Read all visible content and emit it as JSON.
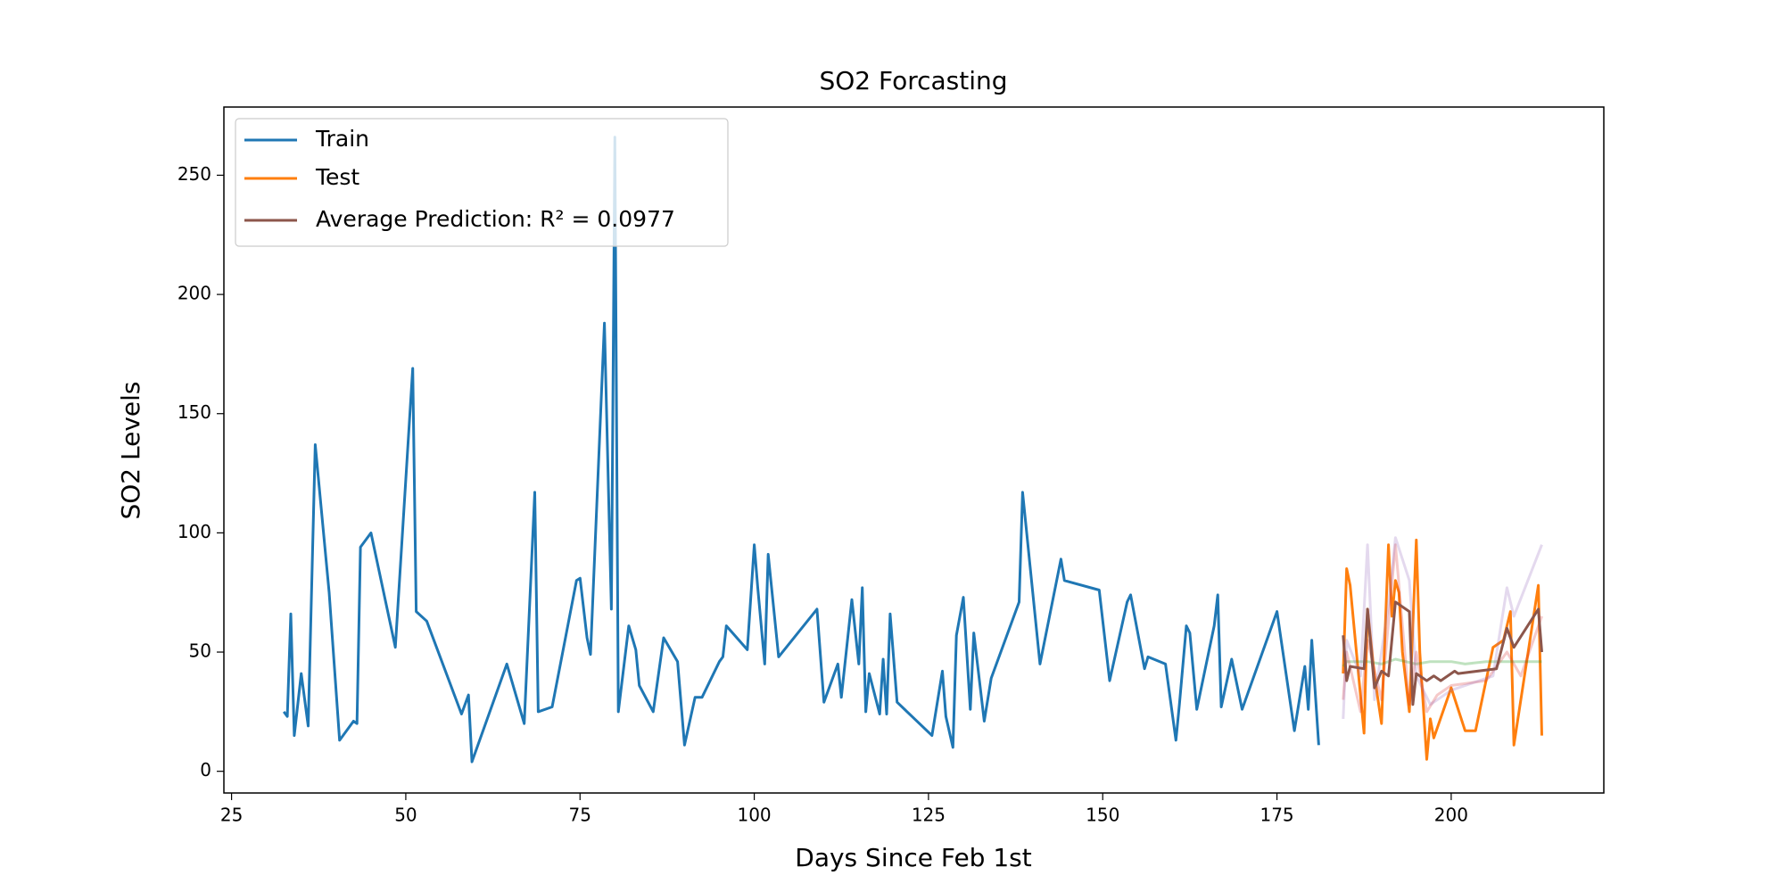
{
  "chart_data": {
    "type": "line",
    "title": "SO2 Forcasting",
    "x_label": "Days Since Feb 1st",
    "y_label": "SO2 Levels",
    "xlim": [
      23.9,
      221.9
    ],
    "ylim": [
      -9.1,
      278.6
    ],
    "xticks": [
      25,
      50,
      75,
      100,
      125,
      150,
      175,
      200
    ],
    "yticks": [
      0,
      50,
      100,
      150,
      200,
      250
    ],
    "grid": false,
    "legend_position": "upper-left",
    "series": [
      {
        "name": "Train",
        "color": "#1f77b4",
        "x": [
          32.5,
          33,
          33.5,
          34,
          35,
          36,
          37,
          39,
          40.5,
          42.5,
          43,
          43.5,
          45,
          48.5,
          51,
          51.5,
          53,
          58,
          59,
          59.5,
          64.5,
          67,
          68.5,
          69,
          71,
          74.5,
          75,
          76,
          76.5,
          78.5,
          79.5,
          80,
          80.5,
          82,
          83,
          83.5,
          85.5,
          87,
          89,
          90,
          91.5,
          92.5,
          95,
          95.5,
          96,
          99,
          100,
          100.5,
          101.5,
          102,
          103.5,
          109,
          110,
          112,
          112.5,
          114,
          115,
          115.5,
          116,
          116.5,
          118,
          118.5,
          119,
          119.5,
          120.5,
          125.5,
          127,
          127.5,
          128.5,
          129,
          130,
          131,
          131.5,
          133,
          134,
          138,
          138.5,
          141,
          144,
          144.5,
          149.5,
          151,
          153.5,
          154,
          156,
          156.5,
          159,
          160.5,
          161,
          162,
          162.5,
          163.5,
          166,
          166.5,
          167,
          168.5,
          170,
          175,
          177.5,
          179,
          179.5,
          180,
          181
        ],
        "values": [
          25,
          23,
          66,
          15,
          41,
          19,
          137,
          75,
          13,
          21,
          20,
          94,
          100,
          52,
          169,
          67,
          63,
          24,
          32,
          4,
          45,
          20,
          117,
          25,
          27,
          80,
          81,
          56,
          49,
          188,
          68,
          266,
          25,
          61,
          51,
          36,
          25,
          56,
          46,
          11,
          31,
          31,
          46,
          48,
          61,
          51,
          95,
          77,
          45,
          91,
          48,
          68,
          29,
          45,
          31,
          72,
          45,
          77,
          25,
          41,
          24,
          47,
          24,
          66,
          29,
          15,
          42,
          23,
          10,
          57,
          73,
          26,
          58,
          21,
          39,
          71,
          117,
          45,
          89,
          80,
          76,
          38,
          71,
          74,
          43,
          48,
          45,
          13,
          28,
          61,
          58,
          26,
          61,
          74,
          27,
          47,
          26,
          67,
          17,
          44,
          26,
          55,
          11
        ]
      },
      {
        "name": "Test",
        "color": "#ff7f0e",
        "x": [
          184.5,
          185,
          185.5,
          187.5,
          188,
          189,
          190,
          191,
          191.5,
          192,
          192.5,
          193,
          194,
          195,
          195.5,
          196.5,
          197,
          197.5,
          200,
          202,
          203.5,
          206,
          207.5,
          208.5,
          209,
          212.5,
          213
        ],
        "values": [
          41,
          85,
          78,
          16,
          68,
          40,
          20,
          95,
          65,
          80,
          75,
          50,
          25,
          97,
          50,
          5,
          22,
          14,
          35,
          17,
          17,
          52,
          55,
          67,
          11,
          78,
          15
        ]
      },
      {
        "color": "#2ca02c",
        "opacity": 0.3,
        "x": [
          184.5,
          185,
          188,
          190,
          192,
          195,
          197,
          200,
          202,
          205,
          208,
          210,
          213
        ],
        "values": [
          44,
          46,
          46,
          45,
          47,
          45,
          46,
          46,
          45,
          46,
          46,
          46,
          46
        ]
      },
      {
        "color": "#d62728",
        "opacity": 0.25,
        "x": [
          184.5,
          185,
          187,
          188,
          190,
          192,
          194,
          195,
          196.5,
          198,
          200,
          205,
          208,
          210,
          213
        ],
        "values": [
          30,
          50,
          25,
          55,
          30,
          95,
          28,
          50,
          25,
          32,
          36,
          38,
          50,
          40,
          65
        ]
      },
      {
        "color": "#9467bd",
        "opacity": 0.25,
        "x": [
          184.5,
          185,
          187,
          188,
          189,
          191,
          192,
          194,
          195,
          197,
          198,
          200,
          206,
          208,
          209,
          213
        ],
        "values": [
          22,
          55,
          40,
          95,
          30,
          70,
          98,
          80,
          40,
          28,
          30,
          34,
          40,
          77,
          65,
          95
        ]
      },
      {
        "name": "Average Prediction: R² = 0.0977",
        "color": "#8c564b",
        "x": [
          184.5,
          185,
          185.5,
          187.5,
          188,
          189,
          190,
          191,
          192,
          193,
          194,
          194.5,
          195,
          196.5,
          197.5,
          198.5,
          200.5,
          201,
          206.5,
          208,
          209,
          212.5,
          213
        ],
        "values": [
          57,
          38,
          44,
          43,
          68,
          35,
          42,
          40,
          71,
          69,
          67,
          28,
          41,
          38,
          40,
          38,
          42,
          41,
          43,
          60,
          52,
          68,
          50
        ]
      }
    ]
  }
}
